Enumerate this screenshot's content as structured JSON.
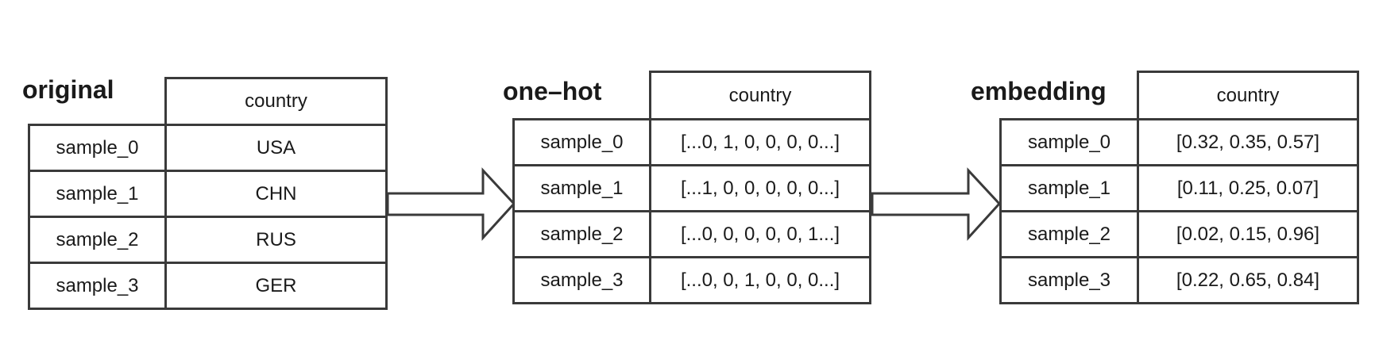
{
  "panels": {
    "original": {
      "title": "original",
      "header": "country",
      "rows": [
        {
          "label": "sample_0",
          "value": "USA"
        },
        {
          "label": "sample_1",
          "value": "CHN"
        },
        {
          "label": "sample_2",
          "value": "RUS"
        },
        {
          "label": "sample_3",
          "value": "GER"
        }
      ]
    },
    "onehot": {
      "title": "one–hot",
      "header": "country",
      "rows": [
        {
          "label": "sample_0",
          "value": "[...0, 1, 0, 0, 0, 0...]"
        },
        {
          "label": "sample_1",
          "value": "[...1, 0, 0, 0, 0, 0...]"
        },
        {
          "label": "sample_2",
          "value": "[...0, 0, 0, 0, 0, 1...]"
        },
        {
          "label": "sample_3",
          "value": "[...0, 0, 1, 0, 0, 0...]"
        }
      ]
    },
    "embedding": {
      "title": "embedding",
      "header": "country",
      "rows": [
        {
          "label": "sample_0",
          "value": "[0.32, 0.35, 0.57]"
        },
        {
          "label": "sample_1",
          "value": "[0.11, 0.25, 0.07]"
        },
        {
          "label": "sample_2",
          "value": "[0.02, 0.15, 0.96]"
        },
        {
          "label": "sample_3",
          "value": "[0.22, 0.65, 0.84]"
        }
      ]
    }
  }
}
